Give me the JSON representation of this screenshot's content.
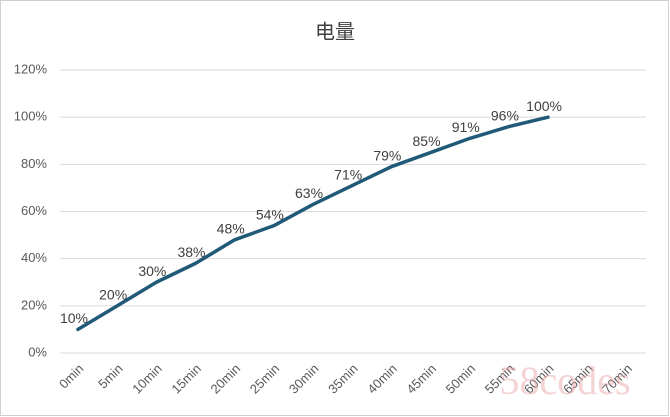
{
  "chart_data": {
    "type": "line",
    "title": "电量",
    "categories": [
      "0min",
      "5min",
      "10min",
      "15min",
      "20min",
      "25min",
      "30min",
      "35min",
      "40min",
      "45min",
      "50min",
      "55min",
      "60min",
      "65min",
      "70min"
    ],
    "series": [
      {
        "name": "电量",
        "color": "#215a78",
        "values": [
          10,
          20,
          30,
          38,
          48,
          54,
          63,
          71,
          79,
          85,
          91,
          96,
          100,
          null,
          null
        ],
        "value_labels": [
          "10%",
          "20%",
          "30%",
          "38%",
          "48%",
          "54%",
          "63%",
          "71%",
          "79%",
          "85%",
          "91%",
          "96%",
          "100%",
          null,
          null
        ]
      }
    ],
    "ylim": [
      0,
      120
    ],
    "yticks": [
      {
        "value": 0,
        "label": "0%"
      },
      {
        "value": 20,
        "label": "20%"
      },
      {
        "value": 40,
        "label": "40%"
      },
      {
        "value": 60,
        "label": "60%"
      },
      {
        "value": 80,
        "label": "80%"
      },
      {
        "value": 100,
        "label": "100%"
      },
      {
        "value": 120,
        "label": "120%"
      }
    ],
    "grid": true,
    "watermark": "58codes"
  }
}
